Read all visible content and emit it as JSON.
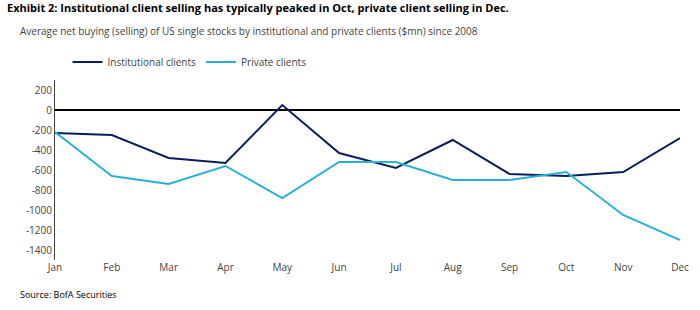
{
  "chart_data": {
    "type": "line",
    "title": "Exhibit 2: Institutional client selling has typically peaked in Oct, private client selling in Dec.",
    "subtitle": "Average net buying (selling) of US single stocks by institutional and private clients ($mn) since 2008",
    "annotations": [
      "Source: BofA Securities"
    ],
    "categories": [
      "Jan",
      "Feb",
      "Mar",
      "Apr",
      "May",
      "Jun",
      "Jul",
      "Aug",
      "Sep",
      "Oct",
      "Nov",
      "Dec"
    ],
    "series": [
      {
        "name": "Institutional clients",
        "color": "#0a1f5c",
        "values": [
          -230,
          -250,
          -480,
          -530,
          50,
          -430,
          -580,
          -300,
          -640,
          -660,
          -620,
          -280
        ]
      },
      {
        "name": "Private clients",
        "color": "#29b0d9",
        "values": [
          -220,
          -660,
          -740,
          -560,
          -880,
          -520,
          -520,
          -700,
          -700,
          -620,
          -1050,
          -1300
        ]
      }
    ],
    "ylim": [
      -1500,
      300
    ],
    "yticks": [
      200,
      0,
      -200,
      -400,
      -600,
      -800,
      -1000,
      -1200,
      -1400
    ],
    "grid": false,
    "legend": "upper left"
  }
}
